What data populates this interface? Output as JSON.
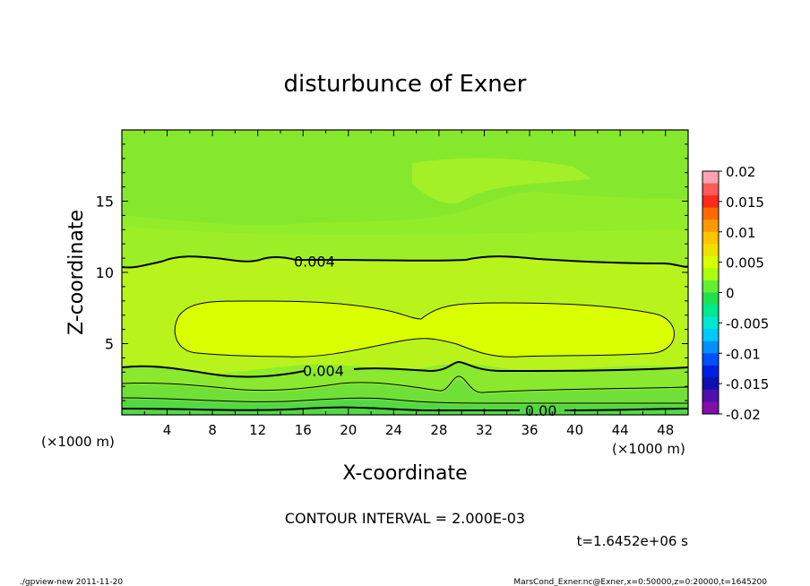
{
  "chart_data": {
    "type": "heatmap",
    "title": "disturbunce of Exner",
    "xlabel": "X-coordinate",
    "ylabel": "Z-coordinate",
    "x_unit_left": "(×1000 m)",
    "x_unit_right": "(×1000 m)",
    "xlim": [
      0,
      50
    ],
    "ylim": [
      0,
      20
    ],
    "x_ticks": [
      4,
      8,
      12,
      16,
      20,
      24,
      28,
      32,
      36,
      40,
      44,
      48
    ],
    "y_ticks": [
      5,
      10,
      15
    ],
    "colorbar": {
      "ticks": [
        "0.02",
        "0.015",
        "0.01",
        "0.005",
        "0",
        "-0.005",
        "-0.01",
        "-0.015",
        "-0.02"
      ],
      "values": [
        0.02,
        0.015,
        0.01,
        0.005,
        0,
        -0.005,
        -0.01,
        -0.015,
        -0.02
      ],
      "colors": [
        "#fca3b3",
        "#ff5a5a",
        "#ff2a18",
        "#ff6a00",
        "#ff9a00",
        "#ffc400",
        "#f0e000",
        "#d8ff00",
        "#a8ff10",
        "#60f030",
        "#20e050",
        "#00e890",
        "#00e8d0",
        "#00c8ff",
        "#0090ff",
        "#0050ff",
        "#0020e0",
        "#1010b0",
        "#5010b0",
        "#8010a8"
      ]
    },
    "contour_labels": [
      {
        "text": "0.004",
        "x": 17.0,
        "z": 10.8
      },
      {
        "text": "0.004",
        "x": 17.8,
        "z": 3.1
      },
      {
        "text": "0.00",
        "x": 37.0,
        "z": 0.3
      }
    ],
    "contour_interval": "CONTOUR INTERVAL = 2.000E-03",
    "time_label": "t=1.6452e+06 s"
  },
  "footer": {
    "left": "./gpview-new   2011-11-20",
    "right": "MarsCond_Exner.nc@Exner,x=0:50000,z=0:20000,t=1645200"
  }
}
